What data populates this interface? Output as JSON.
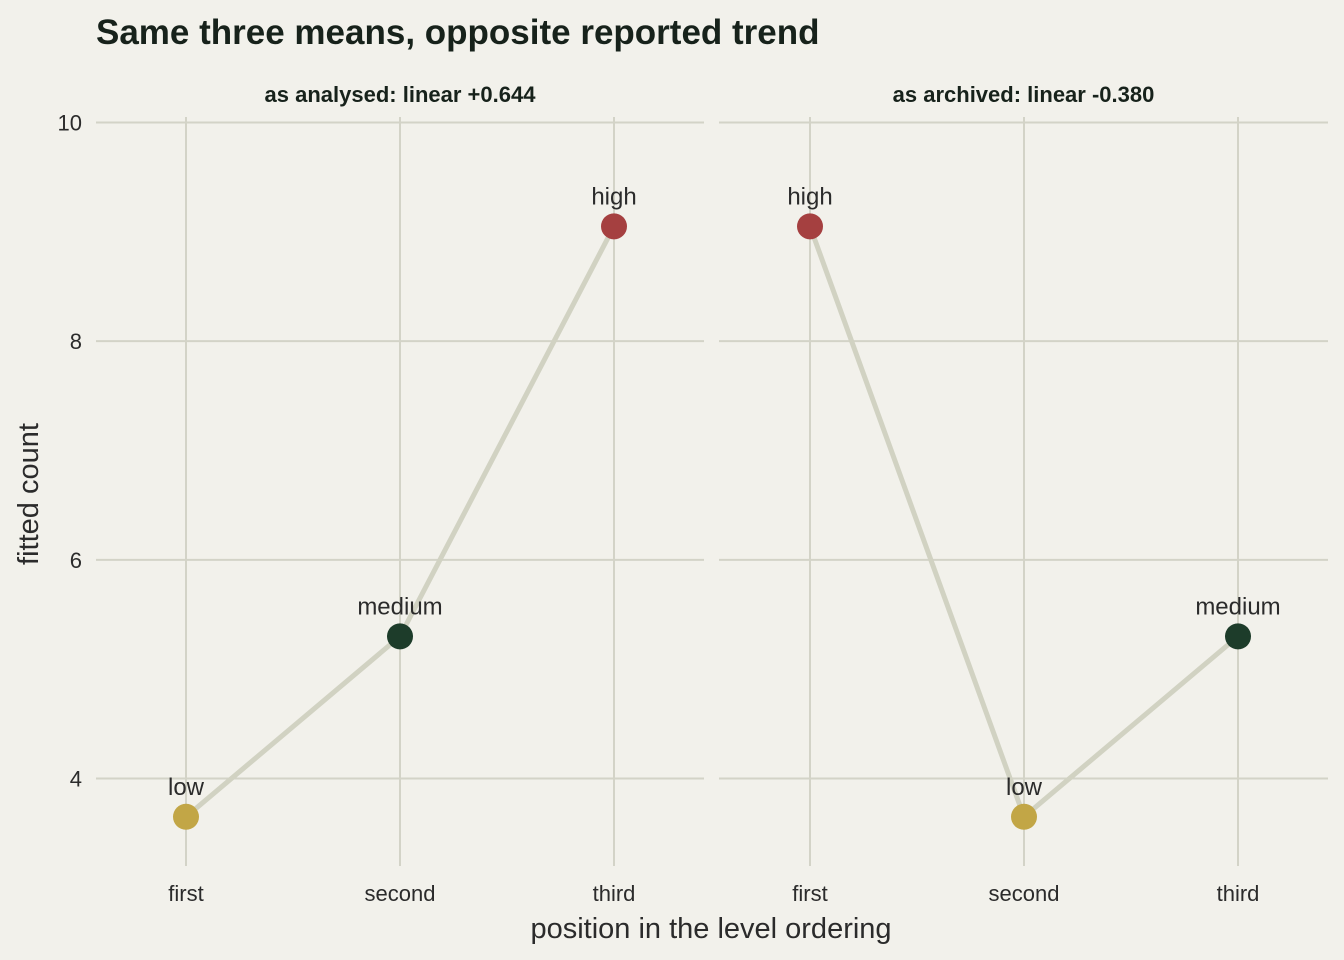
{
  "chart_data": {
    "type": "line",
    "title": "Same three means, opposite reported trend",
    "xlabel": "position in the level ordering",
    "ylabel": "fitted count",
    "ylim": [
      3.2,
      10.05
    ],
    "yticks": [
      4,
      6,
      8,
      10
    ],
    "categories": [
      "first",
      "second",
      "third"
    ],
    "grid": true,
    "legend": "none",
    "colors": {
      "low": "#c2a646",
      "medium": "#1d3c2a",
      "high": "#a54040",
      "line": "#d1d2c2"
    },
    "panels": [
      {
        "strip": "as analysed: linear +0.644",
        "points": [
          {
            "x": "first",
            "label": "low",
            "value": 3.65
          },
          {
            "x": "second",
            "label": "medium",
            "value": 5.3
          },
          {
            "x": "third",
            "label": "high",
            "value": 9.05
          }
        ]
      },
      {
        "strip": "as archived: linear -0.380",
        "points": [
          {
            "x": "first",
            "label": "high",
            "value": 9.05
          },
          {
            "x": "second",
            "label": "low",
            "value": 3.65
          },
          {
            "x": "third",
            "label": "medium",
            "value": 5.3
          }
        ]
      }
    ]
  }
}
